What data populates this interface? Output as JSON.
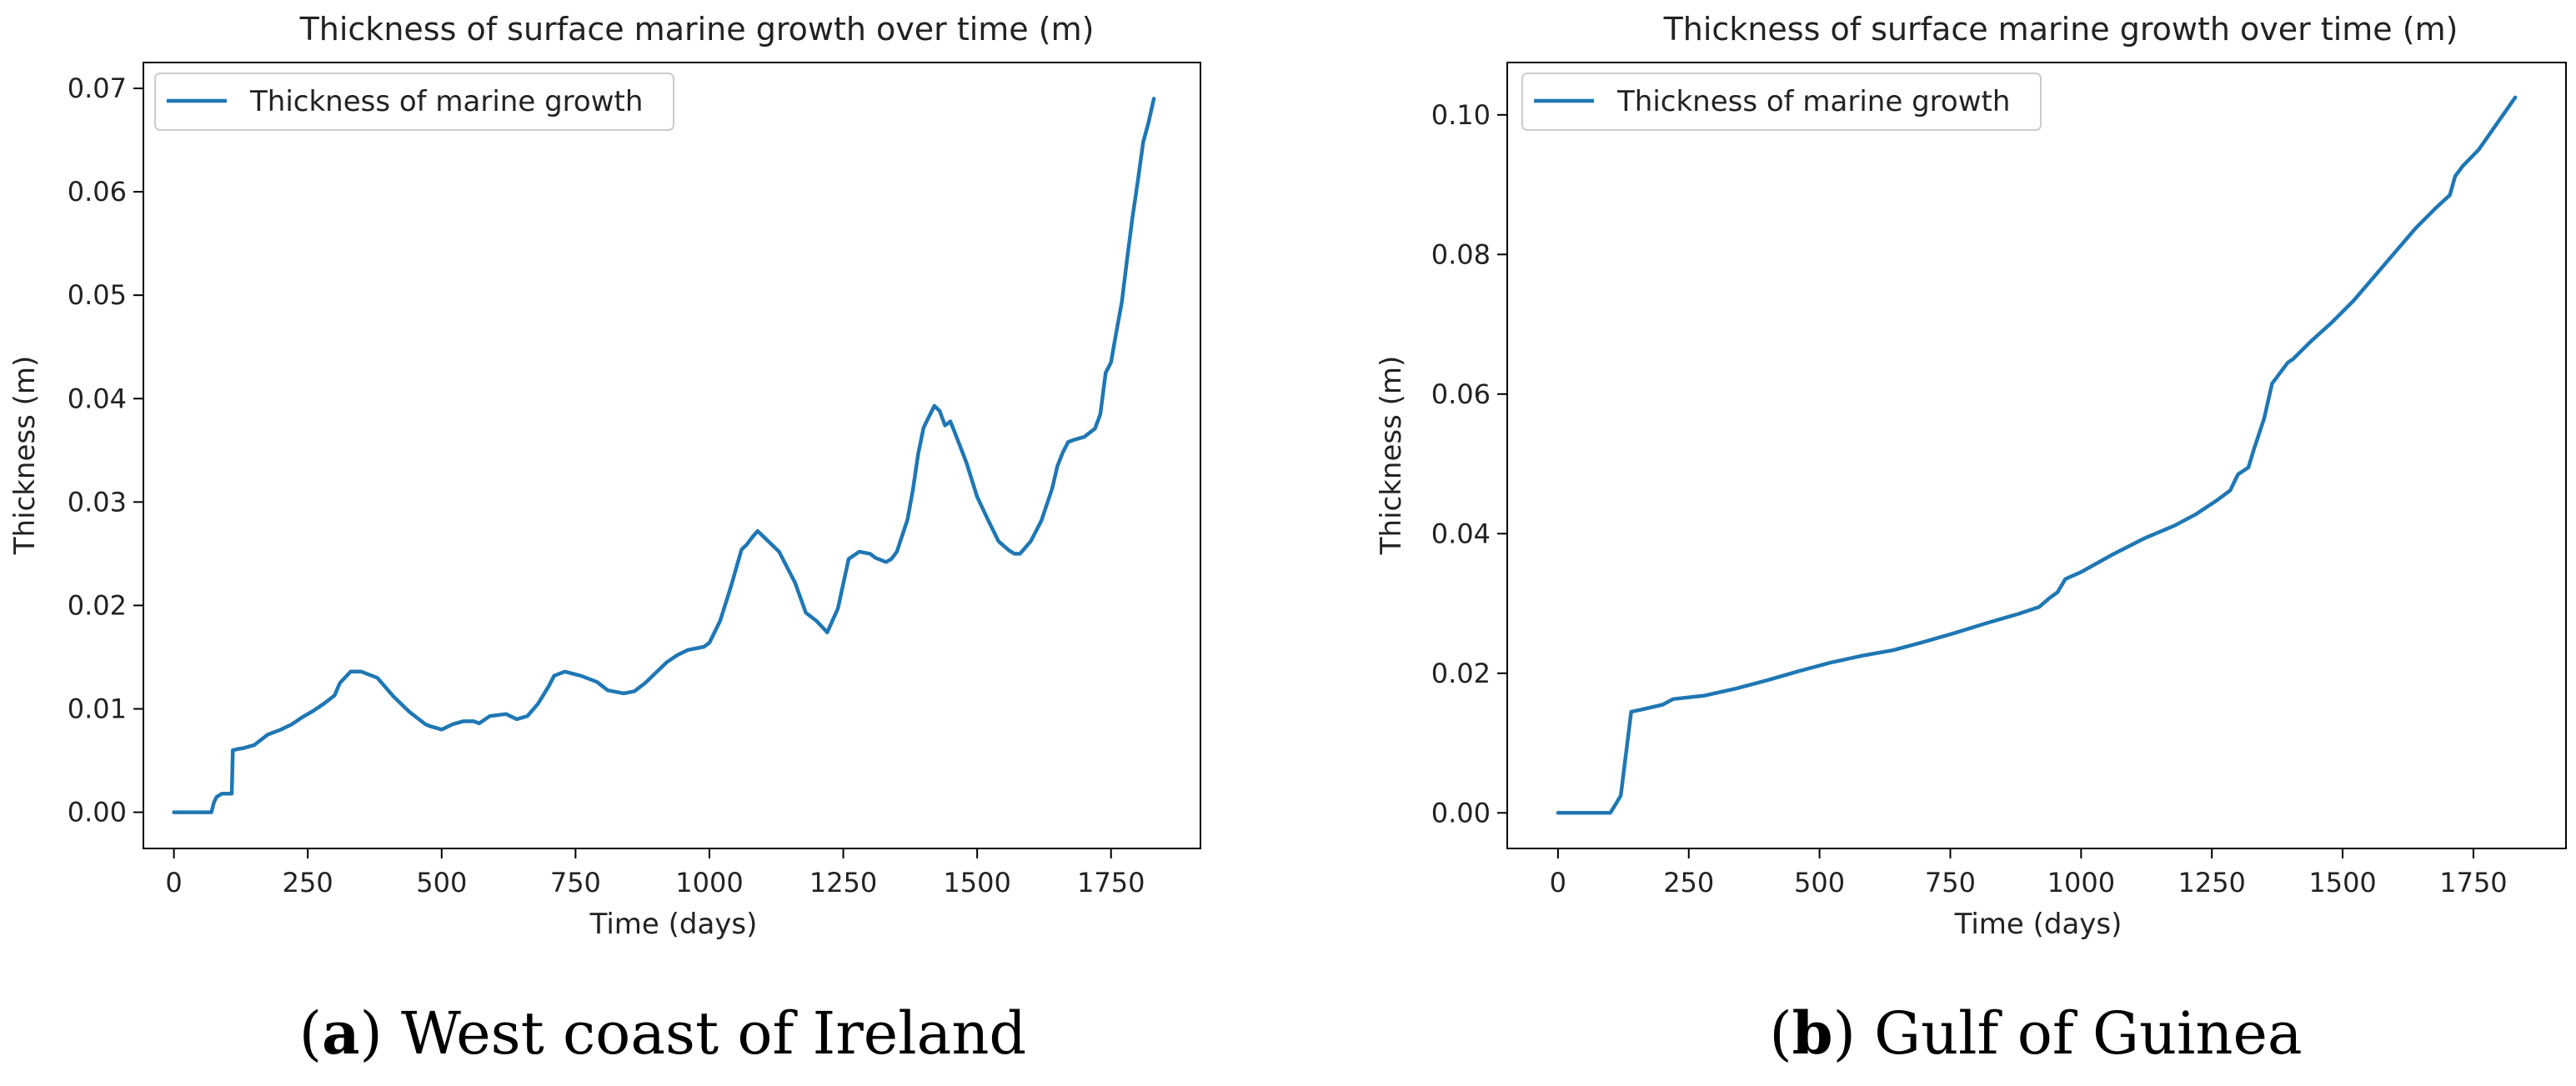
{
  "chart_data": [
    {
      "type": "line",
      "title": "Thickness of surface marine growth over time (m)",
      "xlabel": "Time (days)",
      "ylabel": "Thickness (m)",
      "xlim": [
        -57,
        1917
      ],
      "ylim": [
        -0.0035,
        0.0725
      ],
      "xticks": [
        0,
        250,
        500,
        750,
        1000,
        1250,
        1500,
        1750
      ],
      "xtick_labels": [
        "0",
        "250",
        "500",
        "750",
        "1000",
        "1250",
        "1500",
        "1750"
      ],
      "yticks": [
        0.0,
        0.01,
        0.02,
        0.03,
        0.04,
        0.05,
        0.06,
        0.07
      ],
      "ytick_labels": [
        "0.00",
        "0.01",
        "0.02",
        "0.03",
        "0.04",
        "0.05",
        "0.06",
        "0.07"
      ],
      "legend_position": "top-left",
      "series": [
        {
          "name": "Thickness of marine growth",
          "color": "#1f77b4",
          "x": [
            0,
            70,
            75,
            80,
            90,
            108,
            110,
            118,
            130,
            150,
            175,
            200,
            220,
            240,
            260,
            280,
            300,
            310,
            330,
            350,
            380,
            410,
            440,
            470,
            480,
            500,
            520,
            540,
            560,
            570,
            590,
            620,
            640,
            660,
            680,
            700,
            710,
            730,
            760,
            790,
            810,
            840,
            860,
            880,
            900,
            920,
            940,
            960,
            990,
            1000,
            1020,
            1040,
            1060,
            1070,
            1080,
            1090,
            1100,
            1130,
            1160,
            1180,
            1200,
            1220,
            1240,
            1260,
            1280,
            1300,
            1310,
            1330,
            1340,
            1350,
            1370,
            1380,
            1390,
            1400,
            1420,
            1430,
            1440,
            1450,
            1460,
            1480,
            1500,
            1520,
            1540,
            1560,
            1570,
            1580,
            1600,
            1620,
            1640,
            1650,
            1660,
            1670,
            1680,
            1700,
            1720,
            1730,
            1740,
            1750,
            1760,
            1770,
            1780,
            1790,
            1800,
            1810,
            1820,
            1830
          ],
          "y": [
            0.0,
            0.0,
            0.001,
            0.0015,
            0.0018,
            0.0018,
            0.006,
            0.0061,
            0.0062,
            0.0065,
            0.0075,
            0.008,
            0.0085,
            0.0092,
            0.0098,
            0.0105,
            0.0113,
            0.0125,
            0.0136,
            0.0136,
            0.013,
            0.0112,
            0.0097,
            0.0085,
            0.0083,
            0.008,
            0.0085,
            0.0088,
            0.0088,
            0.0086,
            0.0093,
            0.0095,
            0.009,
            0.0093,
            0.0105,
            0.0122,
            0.0132,
            0.0136,
            0.0132,
            0.0126,
            0.0118,
            0.0115,
            0.0117,
            0.0125,
            0.0135,
            0.0145,
            0.0152,
            0.0157,
            0.016,
            0.0164,
            0.0185,
            0.0218,
            0.0254,
            0.0259,
            0.0266,
            0.0272,
            0.0267,
            0.0252,
            0.0222,
            0.0193,
            0.0185,
            0.0174,
            0.0197,
            0.0245,
            0.0252,
            0.025,
            0.0246,
            0.0242,
            0.0245,
            0.0252,
            0.0283,
            0.0312,
            0.0347,
            0.0372,
            0.0393,
            0.0388,
            0.0374,
            0.0378,
            0.0365,
            0.0338,
            0.0305,
            0.0283,
            0.0262,
            0.0253,
            0.025,
            0.025,
            0.0262,
            0.0282,
            0.0313,
            0.0335,
            0.0348,
            0.0358,
            0.036,
            0.0363,
            0.0371,
            0.0385,
            0.0425,
            0.0435,
            0.0465,
            0.0493,
            0.0535,
            0.0575,
            0.061,
            0.0648,
            0.0667,
            0.069
          ]
        }
      ]
    },
    {
      "type": "line",
      "title": "Thickness of surface marine growth over time (m)",
      "xlabel": "Time (days)",
      "ylabel": "Thickness (m)",
      "xlim": [
        -97,
        1927
      ],
      "ylim": [
        -0.0051,
        0.1075
      ],
      "xticks": [
        0,
        250,
        500,
        750,
        1000,
        1250,
        1500,
        1750
      ],
      "xtick_labels": [
        "0",
        "250",
        "500",
        "750",
        "1000",
        "1250",
        "1500",
        "1750"
      ],
      "yticks": [
        0.0,
        0.02,
        0.04,
        0.06,
        0.08,
        0.1
      ],
      "ytick_labels": [
        "0.00",
        "0.02",
        "0.04",
        "0.06",
        "0.08",
        "0.10"
      ],
      "legend_position": "top-left",
      "series": [
        {
          "name": "Thickness of marine growth",
          "color": "#1f77b4",
          "x": [
            0,
            100,
            110,
            120,
            140,
            160,
            200,
            220,
            280,
            340,
            400,
            460,
            520,
            580,
            640,
            700,
            760,
            820,
            880,
            920,
            940,
            955,
            970,
            1000,
            1060,
            1120,
            1180,
            1220,
            1260,
            1285,
            1300,
            1320,
            1330,
            1350,
            1365,
            1380,
            1395,
            1405,
            1440,
            1480,
            1520,
            1560,
            1600,
            1640,
            1680,
            1705,
            1715,
            1730,
            1760,
            1830
          ],
          "y": [
            0.0,
            0.0,
            0.0012,
            0.0025,
            0.0145,
            0.0148,
            0.0155,
            0.0163,
            0.0168,
            0.0178,
            0.019,
            0.0203,
            0.0215,
            0.0225,
            0.0233,
            0.0245,
            0.0258,
            0.0272,
            0.0285,
            0.0295,
            0.0308,
            0.0316,
            0.0335,
            0.0345,
            0.037,
            0.0393,
            0.0412,
            0.0428,
            0.0448,
            0.0462,
            0.0485,
            0.0495,
            0.052,
            0.0565,
            0.0615,
            0.063,
            0.0645,
            0.065,
            0.0676,
            0.0703,
            0.0733,
            0.0768,
            0.0803,
            0.0838,
            0.0868,
            0.0885,
            0.0912,
            0.0927,
            0.095,
            0.1025
          ]
        }
      ]
    }
  ],
  "captions": [
    {
      "letter": "a",
      "text": "West coast of Ireland"
    },
    {
      "letter": "b",
      "text": "Gulf of Guinea"
    }
  ]
}
